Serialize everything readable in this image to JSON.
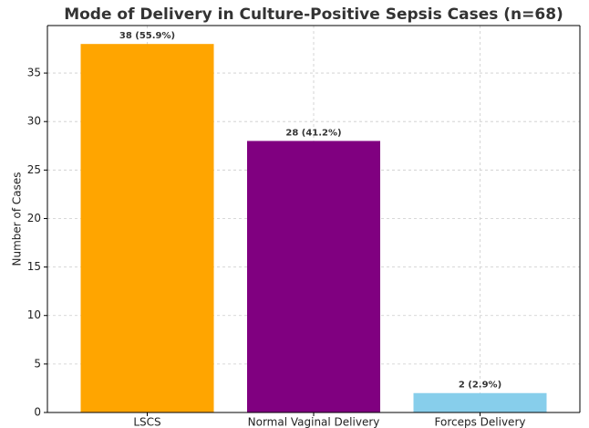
{
  "chart_data": {
    "type": "bar",
    "title": "Mode of Delivery in Culture-Positive Sepsis Cases (n=68)",
    "ylabel": "Number of Cases",
    "categories": [
      "LSCS",
      "Normal Vaginal Delivery",
      "Forceps Delivery"
    ],
    "values": [
      38,
      28,
      2
    ],
    "value_labels": [
      "38 (55.9%)",
      "28 (41.2%)",
      "2 (2.9%)"
    ],
    "colors": [
      "#FFA500",
      "#800080",
      "#87CEEB"
    ],
    "ylim": [
      0,
      39.9
    ],
    "yticks": [
      0,
      5,
      10,
      15,
      20,
      25,
      30,
      35
    ],
    "grid": true
  }
}
